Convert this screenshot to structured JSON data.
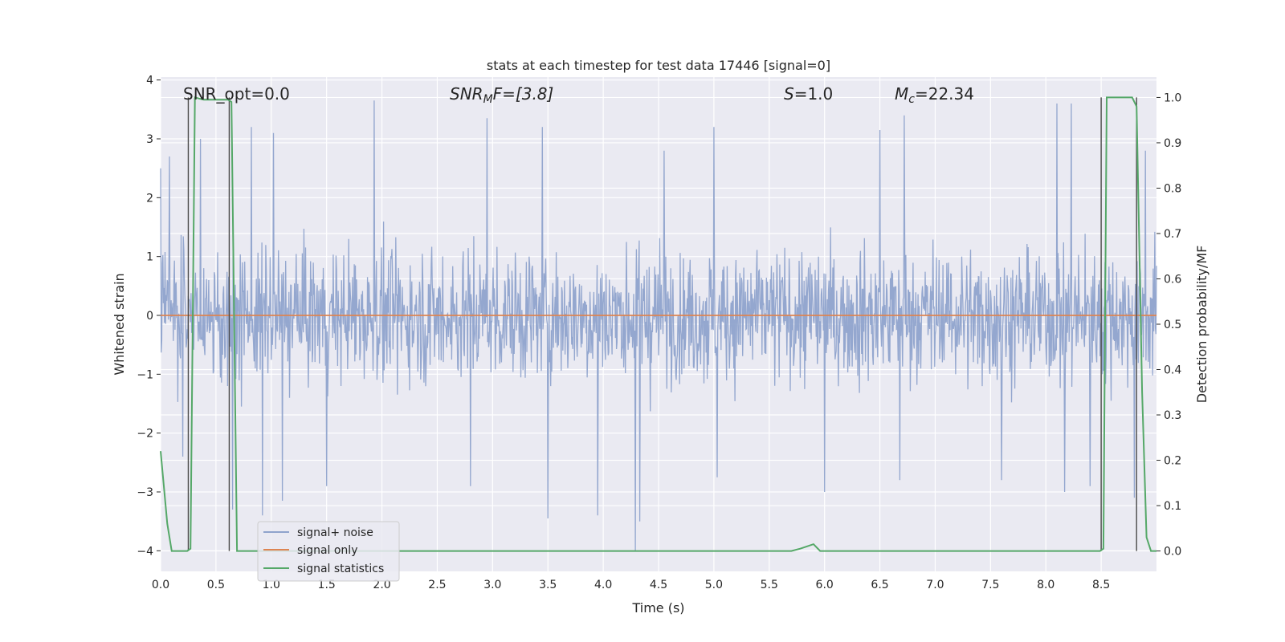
{
  "chart_data": {
    "type": "line",
    "title": "stats at each timestep for test data 17446 [signal=0]",
    "xlabel": "Time (s)",
    "ylabel_left": "Whitened strain",
    "ylabel_right": "Detection probability/MF",
    "xlim": [
      0.0,
      9.0
    ],
    "ylim_left": [
      -4.35,
      4.05
    ],
    "ylim_right": [
      -0.045,
      1.045
    ],
    "x_ticks": [
      "0.0",
      "0.5",
      "1.0",
      "1.5",
      "2.0",
      "2.5",
      "3.0",
      "3.5",
      "4.0",
      "4.5",
      "5.0",
      "5.5",
      "6.0",
      "6.5",
      "7.0",
      "7.5",
      "8.0",
      "8.5"
    ],
    "y_ticks_left": [
      "−4",
      "−3",
      "−2",
      "−1",
      "0",
      "1",
      "2",
      "3",
      "4"
    ],
    "y_ticks_right": [
      "0.0",
      "0.1",
      "0.2",
      "0.3",
      "0.4",
      "0.5",
      "0.6",
      "0.7",
      "0.8",
      "0.9",
      "1.0"
    ],
    "grid": true,
    "legend_position": "lower-left",
    "annotations": {
      "snr_opt": "SNR_opt=0.0",
      "snr_mf_name": "SNR",
      "snr_mf_sub": "M",
      "snr_mf_rest": "F=[3.8]",
      "s_name": "S",
      "s_rest": "=1.0",
      "mc_name": "M",
      "mc_sub": "c",
      "mc_rest": "=22.34"
    },
    "series": [
      {
        "name": "signal+ noise",
        "color": "#8fa3cc",
        "axis": "left",
        "envelope_note": "dense whitened noise, roughly between -2 and +2 with spikes",
        "peaks": [
          [
            0.0,
            2.5
          ],
          [
            0.08,
            2.7
          ],
          [
            0.36,
            3.0
          ],
          [
            0.82,
            3.2
          ],
          [
            1.02,
            3.1
          ],
          [
            1.93,
            3.65
          ],
          [
            2.95,
            3.35
          ],
          [
            3.45,
            3.2
          ],
          [
            4.55,
            2.8
          ],
          [
            5.0,
            3.2
          ],
          [
            6.5,
            3.15
          ],
          [
            6.72,
            3.4
          ],
          [
            8.1,
            3.6
          ],
          [
            8.23,
            3.6
          ],
          [
            8.9,
            2.8
          ]
        ],
        "troughs": [
          [
            0.2,
            -2.4
          ],
          [
            0.65,
            -3.3
          ],
          [
            0.92,
            -3.4
          ],
          [
            1.1,
            -3.15
          ],
          [
            1.5,
            -2.9
          ],
          [
            2.8,
            -2.9
          ],
          [
            3.5,
            -3.45
          ],
          [
            3.95,
            -3.4
          ],
          [
            4.29,
            -4.0
          ],
          [
            4.33,
            -3.5
          ],
          [
            5.03,
            -2.75
          ],
          [
            6.0,
            -3.0
          ],
          [
            6.68,
            -2.8
          ],
          [
            7.6,
            -2.8
          ],
          [
            8.17,
            -3.0
          ],
          [
            8.4,
            -2.9
          ],
          [
            8.8,
            -3.1
          ]
        ]
      },
      {
        "name": "signal only",
        "color": "#dd8452",
        "axis": "left",
        "x": [
          0.0,
          9.0
        ],
        "y": [
          0.0,
          0.0
        ]
      },
      {
        "name": "signal statistics",
        "color": "#55a868",
        "axis": "right",
        "x": [
          0.0,
          0.06,
          0.1,
          0.18,
          0.24,
          0.27,
          0.31,
          0.39,
          0.47,
          0.55,
          0.61,
          0.64,
          0.69,
          0.74,
          0.8,
          1.0,
          5.5,
          5.7,
          5.78,
          5.84,
          5.9,
          5.96,
          6.02,
          8.0,
          8.49,
          8.52,
          8.55,
          8.58,
          8.72,
          8.78,
          8.82,
          8.87,
          8.91,
          8.95,
          9.0
        ],
        "y": [
          0.22,
          0.06,
          0.0,
          0.0,
          0.0,
          0.005,
          1.0,
          0.995,
          0.995,
          0.995,
          0.995,
          0.99,
          0.0,
          0.0,
          0.0,
          0.0,
          0.0,
          0.0,
          0.005,
          0.01,
          0.015,
          0.0,
          0.0,
          0.0,
          0.0,
          0.005,
          1.0,
          1.0,
          1.0,
          1.0,
          0.98,
          0.35,
          0.03,
          0.0,
          0.0
        ]
      }
    ],
    "vertical_markers_x": [
      0.25,
      0.62,
      8.5,
      8.82
    ]
  }
}
